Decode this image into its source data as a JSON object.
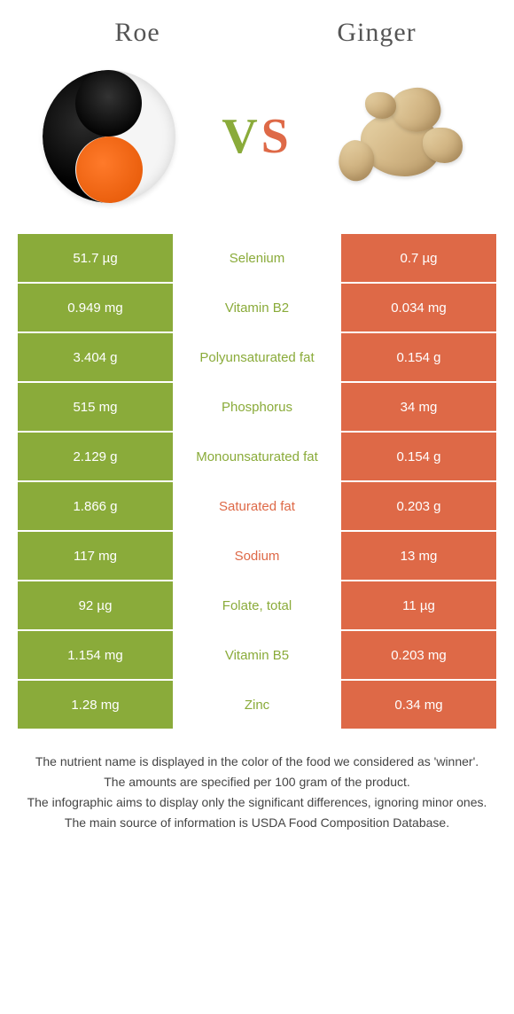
{
  "colors": {
    "left_bg": "#8aab3a",
    "right_bg": "#de6947",
    "mid_green": "#8aab3a",
    "mid_orange": "#de6947"
  },
  "header": {
    "left_title": "Roe",
    "right_title": "Ginger",
    "vs_v": "V",
    "vs_s": "S"
  },
  "rows": [
    {
      "left": "51.7 µg",
      "label": "Selenium",
      "right": "0.7 µg",
      "winner": "left"
    },
    {
      "left": "0.949 mg",
      "label": "Vitamin B2",
      "right": "0.034 mg",
      "winner": "left"
    },
    {
      "left": "3.404 g",
      "label": "Polyunsaturated fat",
      "right": "0.154 g",
      "winner": "left"
    },
    {
      "left": "515 mg",
      "label": "Phosphorus",
      "right": "34 mg",
      "winner": "left"
    },
    {
      "left": "2.129 g",
      "label": "Monounsaturated fat",
      "right": "0.154 g",
      "winner": "left"
    },
    {
      "left": "1.866 g",
      "label": "Saturated fat",
      "right": "0.203 g",
      "winner": "right"
    },
    {
      "left": "117 mg",
      "label": "Sodium",
      "right": "13 mg",
      "winner": "right"
    },
    {
      "left": "92 µg",
      "label": "Folate, total",
      "right": "11 µg",
      "winner": "left"
    },
    {
      "left": "1.154 mg",
      "label": "Vitamin B5",
      "right": "0.203 mg",
      "winner": "left"
    },
    {
      "left": "1.28 mg",
      "label": "Zinc",
      "right": "0.34 mg",
      "winner": "left"
    }
  ],
  "footer": {
    "line1": "The nutrient name is displayed in the color of the food we considered as 'winner'.",
    "line2": "The amounts are specified per 100 gram of the product.",
    "line3": "The infographic aims to display only the significant differences, ignoring minor ones.",
    "line4": "The main source of information is USDA Food Composition Database."
  }
}
